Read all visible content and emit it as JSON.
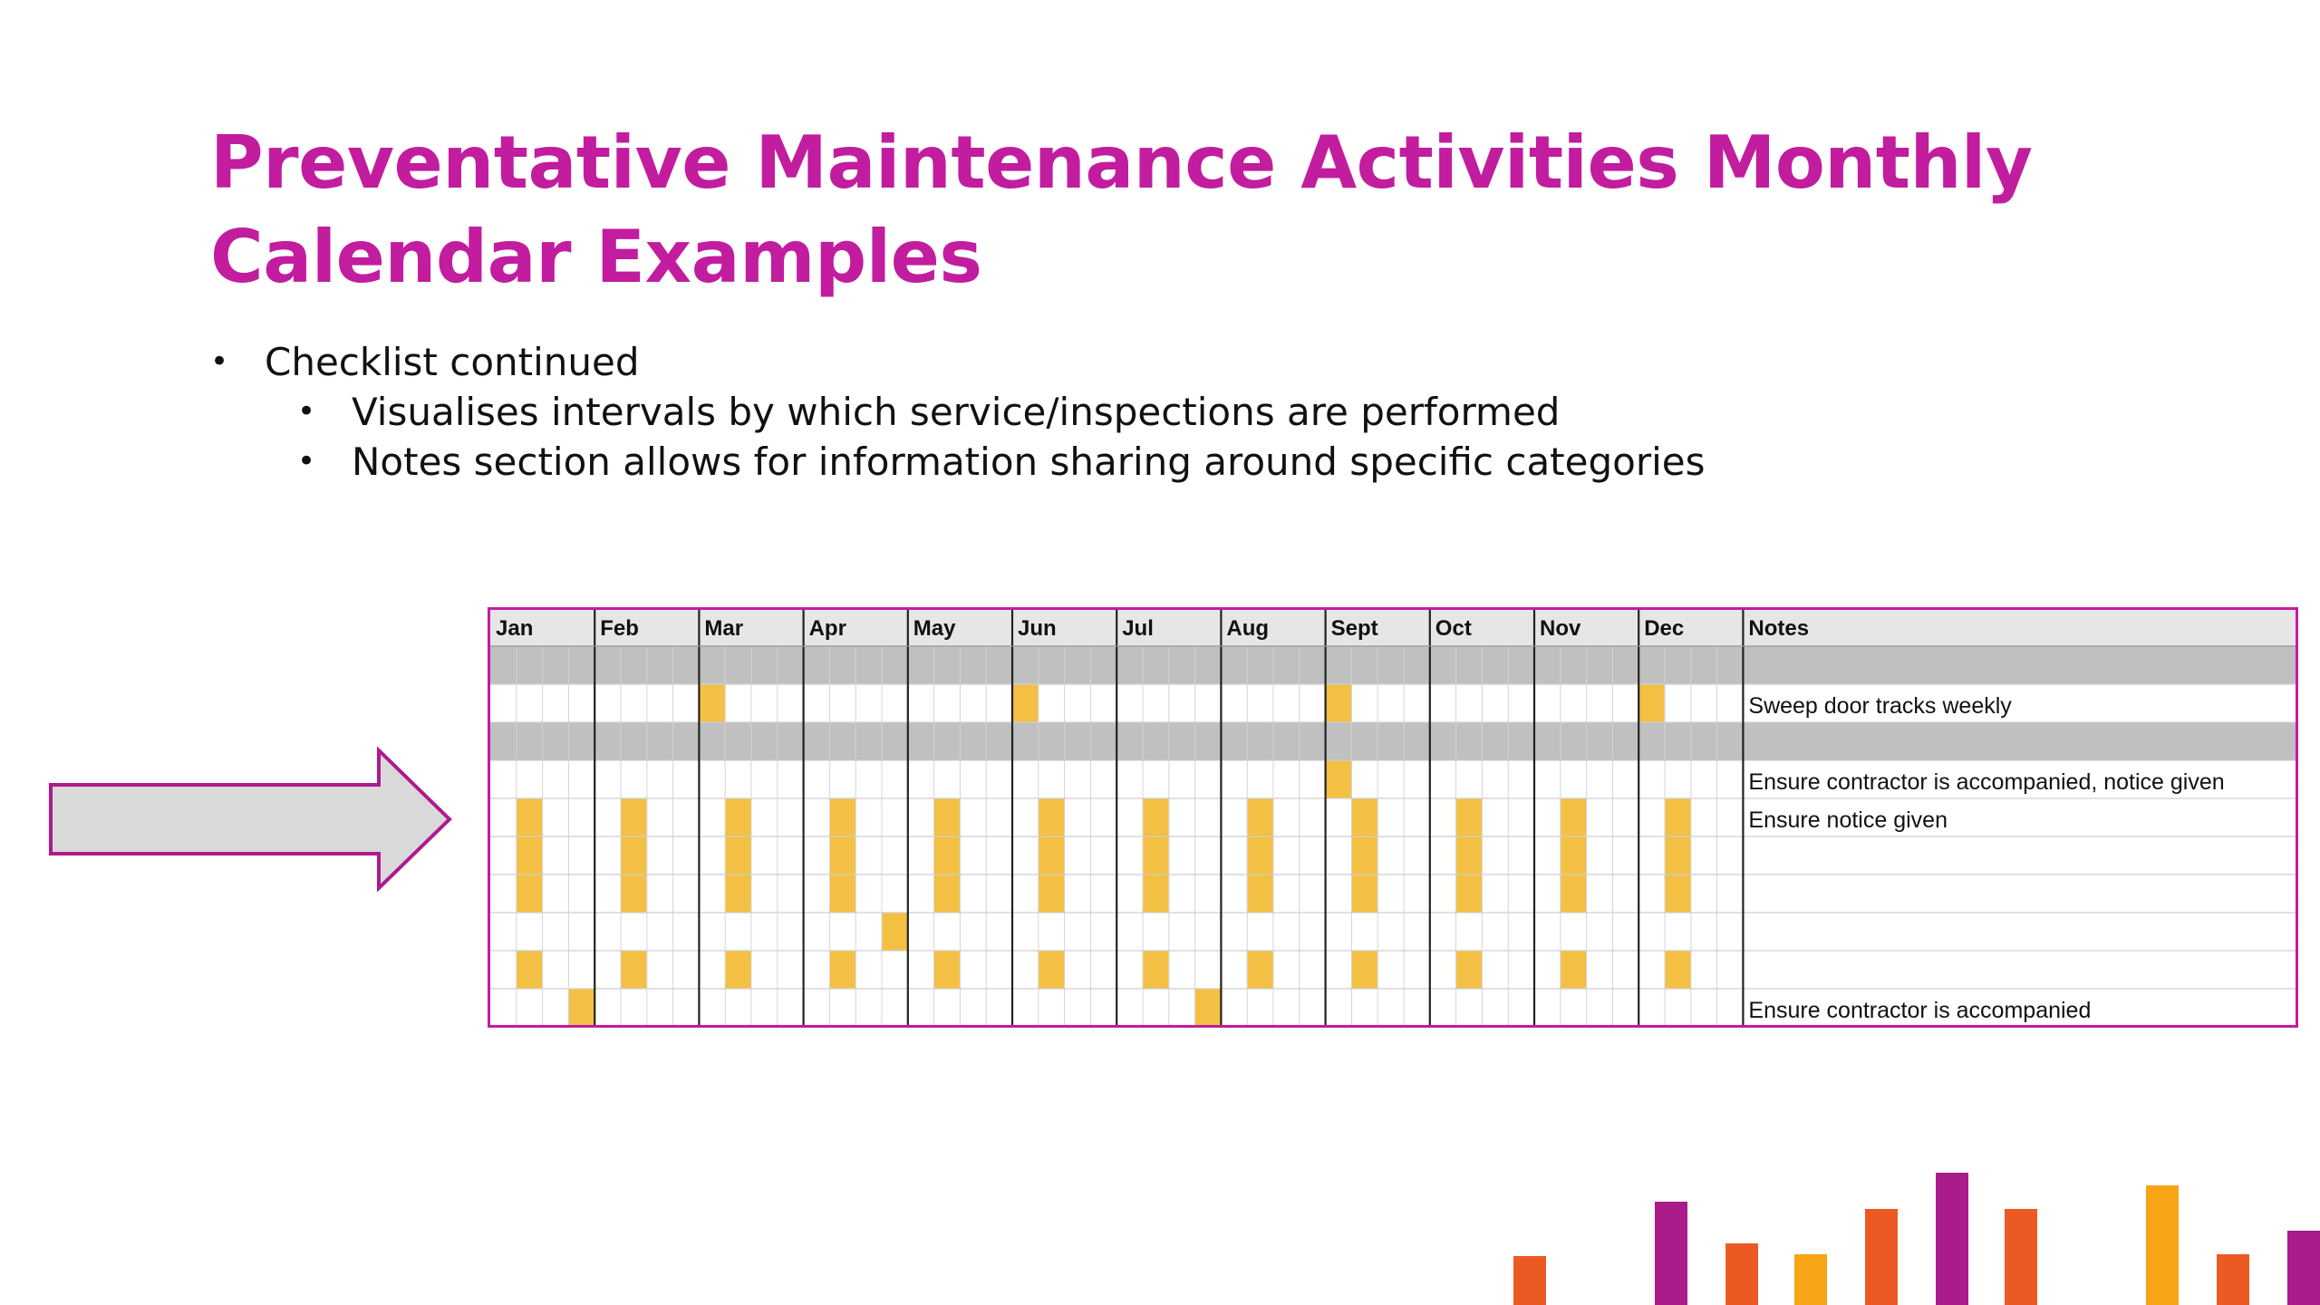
{
  "slide": {
    "title_line1": "Preventative Maintenance Activities Monthly",
    "title_line2": "Calendar Examples",
    "bullets": [
      {
        "level": 1,
        "text": "Checklist continued"
      },
      {
        "level": 2,
        "text": "Visualises intervals by which service/inspections are performed"
      },
      {
        "level": 2,
        "text": "Notes section allows for information sharing around specific categories"
      }
    ]
  },
  "calendar": {
    "months": [
      "Jan",
      "Feb",
      "Mar",
      "Apr",
      "May",
      "Jun",
      "Jul",
      "Aug",
      "Sept",
      "Oct",
      "Nov",
      "Dec"
    ],
    "notes_header": "Notes",
    "weeks_per_month": 4,
    "rows": [
      {
        "kind": "header"
      },
      {
        "kind": "category"
      },
      {
        "kind": "task",
        "note": "Sweep door tracks weekly"
      },
      {
        "kind": "category"
      },
      {
        "kind": "task",
        "note": "Ensure contractor is accompanied, notice given"
      },
      {
        "kind": "task",
        "note": "Ensure notice given"
      },
      {
        "kind": "task",
        "note": ""
      },
      {
        "kind": "task",
        "note": ""
      },
      {
        "kind": "task",
        "note": ""
      },
      {
        "kind": "task",
        "note": ""
      },
      {
        "kind": "task",
        "note": "Ensure contractor is accompanied"
      }
    ],
    "highlights": [
      {
        "row": 2,
        "month": 2,
        "week": 0,
        "span_rows": 1
      },
      {
        "row": 2,
        "month": 5,
        "week": 0,
        "span_rows": 1
      },
      {
        "row": 2,
        "month": 8,
        "week": 0,
        "span_rows": 1
      },
      {
        "row": 2,
        "month": 11,
        "week": 0,
        "span_rows": 1
      },
      {
        "row": 4,
        "month": 8,
        "week": 0,
        "span_rows": 1
      },
      {
        "row": 5,
        "month": 0,
        "week": 1,
        "span_rows": 3
      },
      {
        "row": 5,
        "month": 1,
        "week": 1,
        "span_rows": 3
      },
      {
        "row": 5,
        "month": 2,
        "week": 1,
        "span_rows": 3
      },
      {
        "row": 5,
        "month": 3,
        "week": 1,
        "span_rows": 3
      },
      {
        "row": 5,
        "month": 4,
        "week": 1,
        "span_rows": 3
      },
      {
        "row": 5,
        "month": 5,
        "week": 1,
        "span_rows": 3
      },
      {
        "row": 5,
        "month": 6,
        "week": 1,
        "span_rows": 3
      },
      {
        "row": 5,
        "month": 7,
        "week": 1,
        "span_rows": 3
      },
      {
        "row": 5,
        "month": 8,
        "week": 1,
        "span_rows": 3
      },
      {
        "row": 5,
        "month": 9,
        "week": 1,
        "span_rows": 3
      },
      {
        "row": 5,
        "month": 10,
        "week": 1,
        "span_rows": 3
      },
      {
        "row": 5,
        "month": 11,
        "week": 1,
        "span_rows": 3
      },
      {
        "row": 8,
        "month": 3,
        "week": 3,
        "span_rows": 1
      },
      {
        "row": 9,
        "month": 0,
        "week": 1,
        "span_rows": 1
      },
      {
        "row": 9,
        "month": 1,
        "week": 1,
        "span_rows": 1
      },
      {
        "row": 9,
        "month": 2,
        "week": 1,
        "span_rows": 1
      },
      {
        "row": 9,
        "month": 3,
        "week": 1,
        "span_rows": 1
      },
      {
        "row": 9,
        "month": 4,
        "week": 1,
        "span_rows": 1
      },
      {
        "row": 9,
        "month": 5,
        "week": 1,
        "span_rows": 1
      },
      {
        "row": 9,
        "month": 6,
        "week": 1,
        "span_rows": 1
      },
      {
        "row": 9,
        "month": 7,
        "week": 1,
        "span_rows": 1
      },
      {
        "row": 9,
        "month": 8,
        "week": 1,
        "span_rows": 1
      },
      {
        "row": 9,
        "month": 9,
        "week": 1,
        "span_rows": 1
      },
      {
        "row": 9,
        "month": 10,
        "week": 1,
        "span_rows": 1
      },
      {
        "row": 9,
        "month": 11,
        "week": 1,
        "span_rows": 1
      },
      {
        "row": 10,
        "month": 0,
        "week": 3,
        "span_rows": 1
      },
      {
        "row": 10,
        "month": 6,
        "week": 3,
        "span_rows": 1
      }
    ]
  },
  "colors": {
    "title": "#c21c9f",
    "highlight": "#f3c043",
    "category_row": "#c0c0c0",
    "header_row": "#e6e6e6",
    "frame": "#c21c9f",
    "arrow_fill": "#d9d9d9",
    "arrow_stroke": "#b0198e"
  },
  "decorative_bars": [
    "#ec5a24",
    "#a91c8a",
    "#ec5a24",
    "#f8a515",
    "#ec5a24",
    "#a91c8a",
    "#ec5a24",
    "#f8a515",
    "#ec5a24",
    "#a91c8a"
  ]
}
